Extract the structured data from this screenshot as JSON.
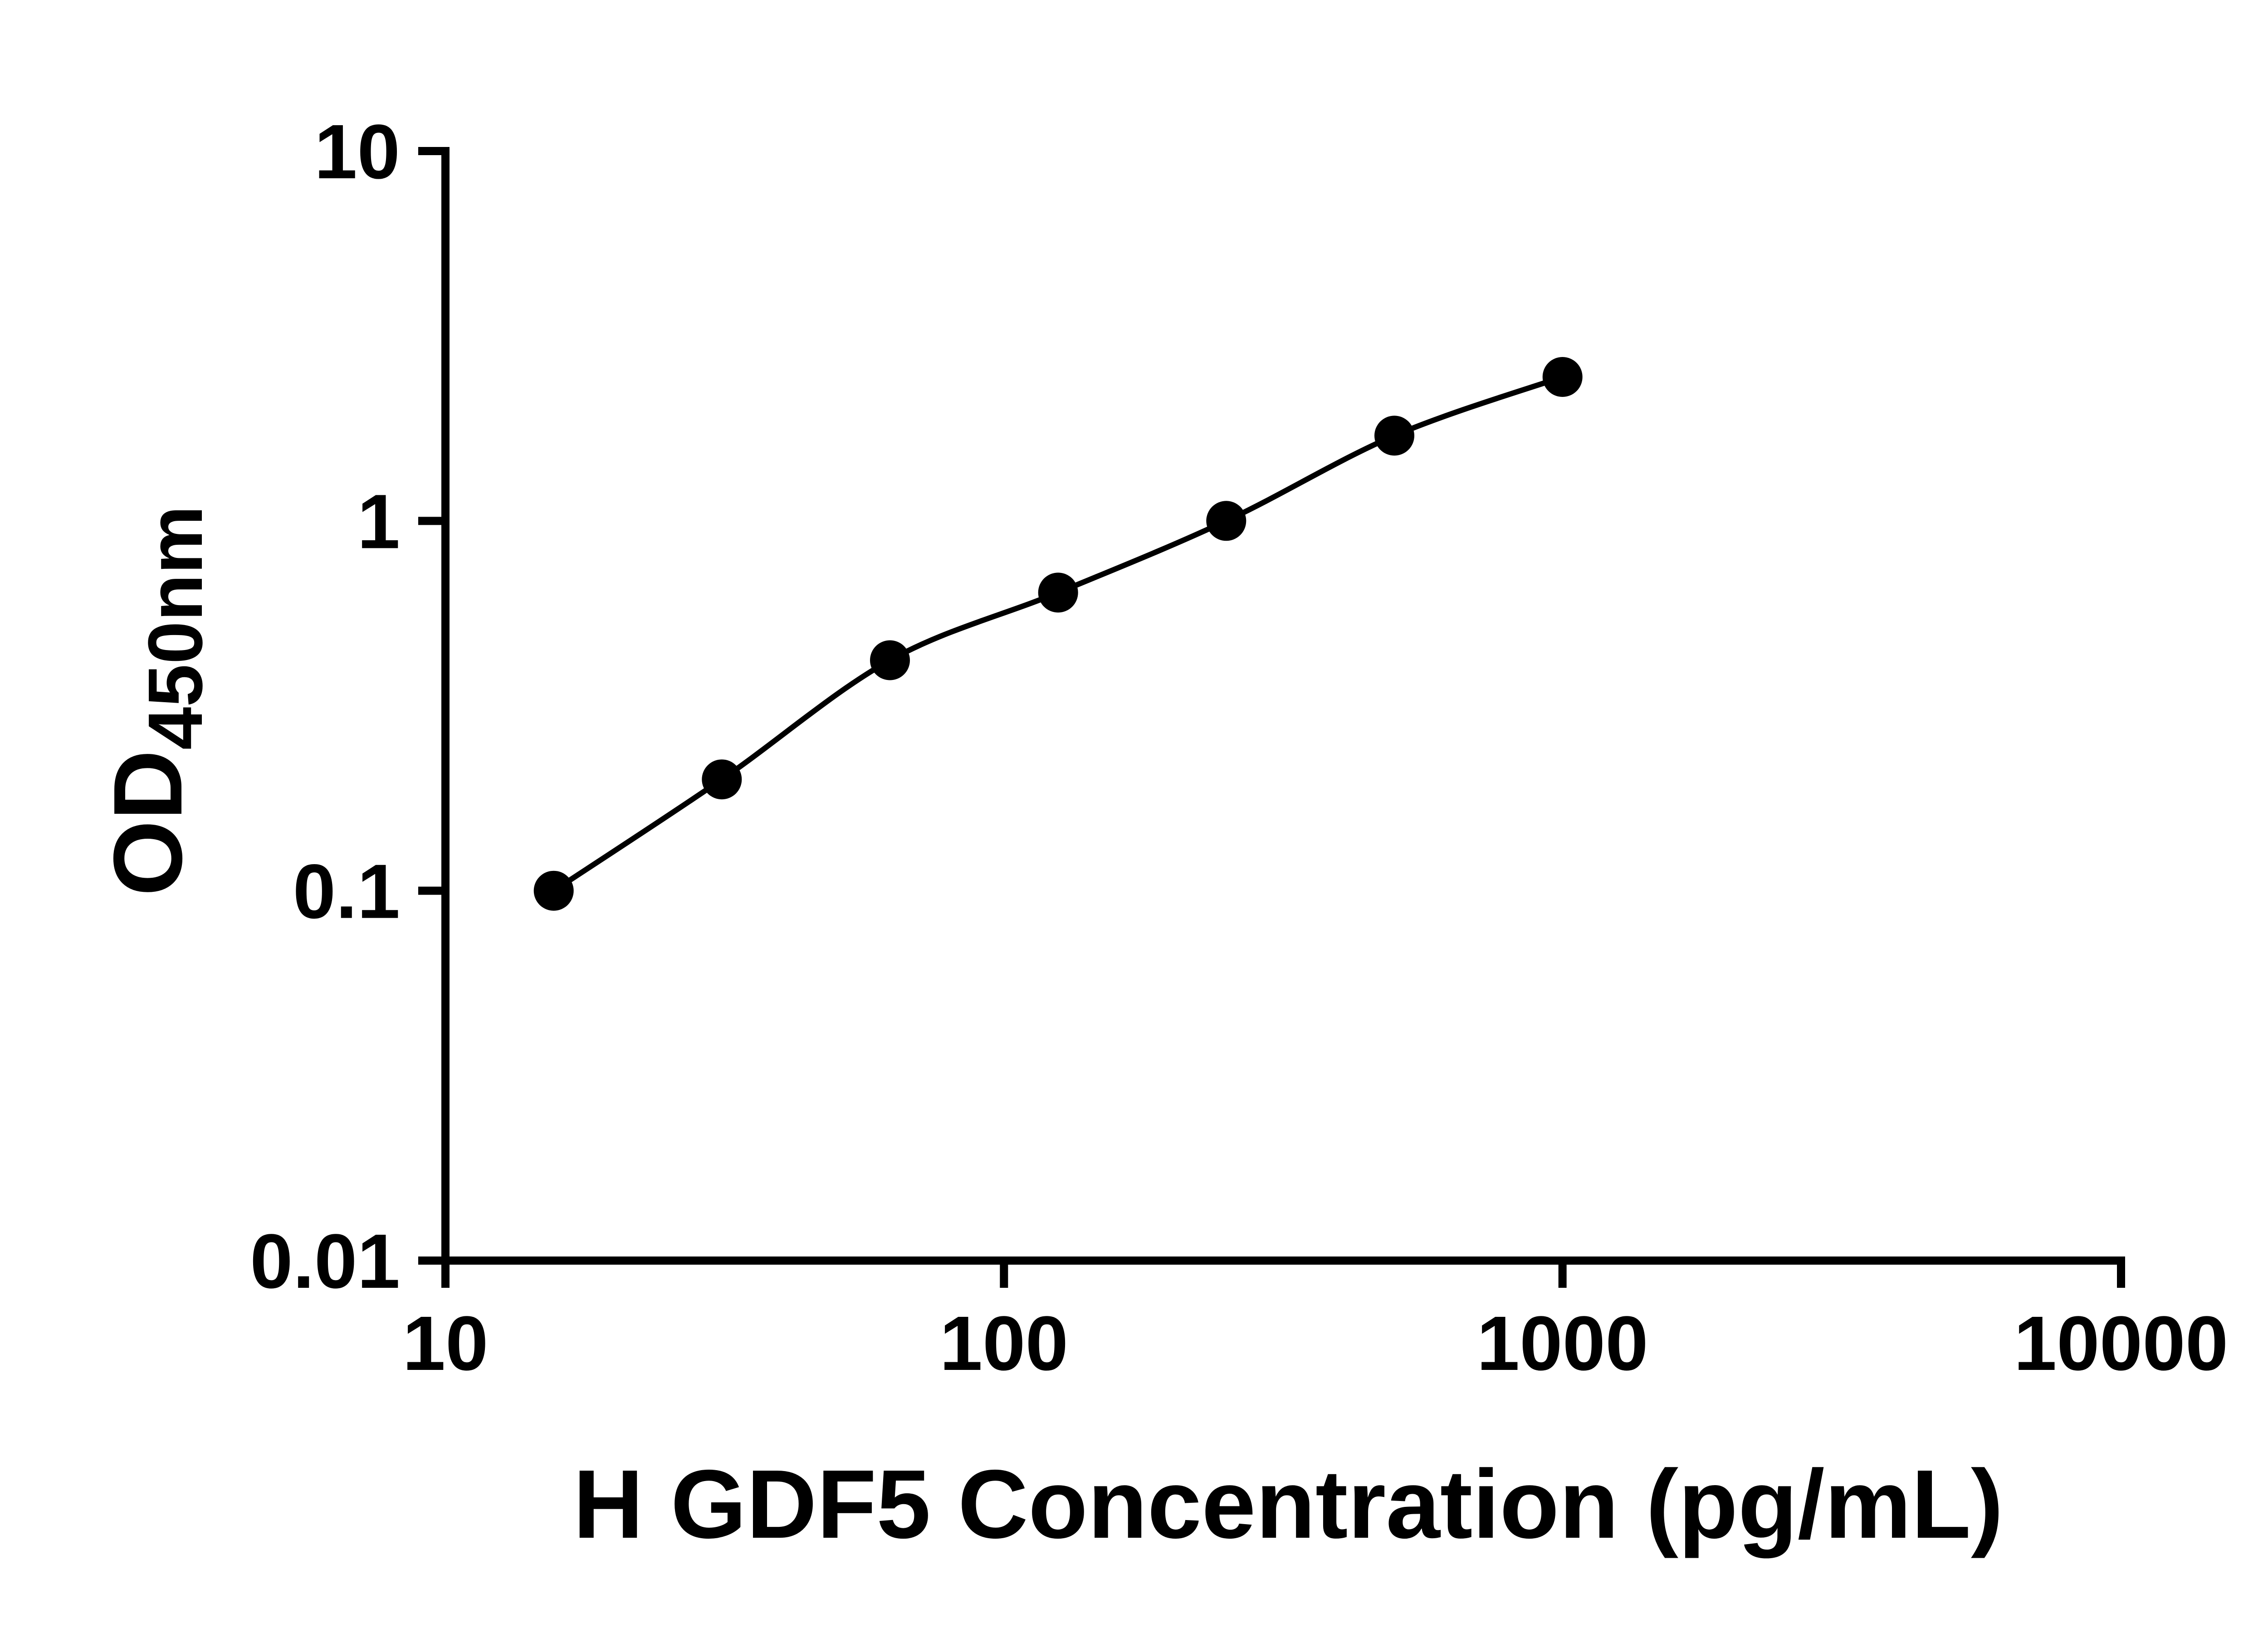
{
  "figure": {
    "background": "#ffffff"
  },
  "chart_data": {
    "type": "scatter",
    "title": "",
    "xlabel": "H GDF5 Concentration (pg/mL)",
    "ylabel": "OD450nm",
    "ylabel_base": "OD",
    "ylabel_subscript": "450nm",
    "x_scale": "log10",
    "y_scale": "log10",
    "xlim": [
      10,
      10000
    ],
    "ylim": [
      0.01,
      10
    ],
    "grid": false,
    "legend": null,
    "x_ticks": [
      {
        "value": 10,
        "label": "10"
      },
      {
        "value": 100,
        "label": "100"
      },
      {
        "value": 1000,
        "label": "1000"
      },
      {
        "value": 10000,
        "label": "10000"
      }
    ],
    "y_ticks": [
      {
        "value": 10,
        "label": "10"
      },
      {
        "value": 1,
        "label": "1"
      },
      {
        "value": 0.1,
        "label": "0.1"
      },
      {
        "value": 0.01,
        "label": "0.01"
      }
    ],
    "points": [
      {
        "x": 15.625,
        "y": 0.1
      },
      {
        "x": 31.25,
        "y": 0.2
      },
      {
        "x": 62.5,
        "y": 0.42
      },
      {
        "x": 125,
        "y": 0.64
      },
      {
        "x": 250,
        "y": 1.0
      },
      {
        "x": 500,
        "y": 1.7
      },
      {
        "x": 1000,
        "y": 2.45
      }
    ],
    "fit": "smooth curve through standard points",
    "colors": {
      "axis": "#000000",
      "marker": "#000000",
      "curve": "#000000",
      "background": "#ffffff"
    }
  }
}
